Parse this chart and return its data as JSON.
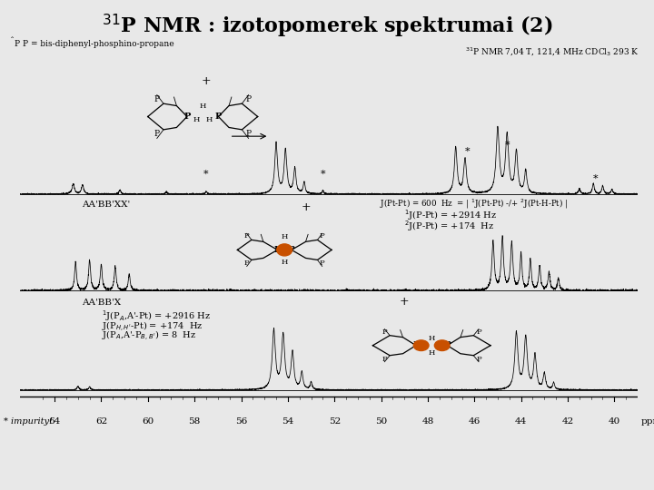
{
  "title": "$^{31}$P NMR : izotopomerek spektrumai (2)",
  "title_fontsize": 16,
  "bg_color": "#f0f0f0",
  "subtitle_left": "P P = bis-diphenyl-phosphino-propane",
  "subtitle_right": "$^{31}$P NMR 7,04 T, 121,4 MHz CDCl$_3$ 293 K",
  "xaxis_all_ticks": [
    64,
    62,
    60,
    58,
    56,
    54,
    52,
    50,
    48,
    46,
    44,
    42,
    40
  ],
  "xaxis_all_labels": [
    "64",
    "62",
    "60",
    "58",
    "56",
    "54",
    "52",
    "50",
    "48",
    "46",
    "44",
    "42",
    "40"
  ],
  "impurity_label": "* impurity!",
  "row2_label": "AA'BB'XX'",
  "row2_right_text1": "J(Pt-Pt) = 600  Hz  = | $^1$J(Pt-Pt) -/+ $^2$J(Pt-H-Pt) |",
  "row2_right_text2": "$^1$J(P-Pt) = +2914 Hz",
  "row2_right_text3": "$^2$J(P-Pt) = +174  Hz",
  "row3_label": "AA'BB'X",
  "row3_text1": "$^1$J(P$_A$,A'-Pt) = +2916 Hz",
  "row3_text2": "J(P$_{H,H'}$-Pt) = +174  Hz",
  "row3_text3": "J(P$_A$,A'-P$_{B,B'}$) = 8  Hz",
  "xmin": 39.0,
  "xmax": 65.5,
  "pt_color": "#c85000"
}
